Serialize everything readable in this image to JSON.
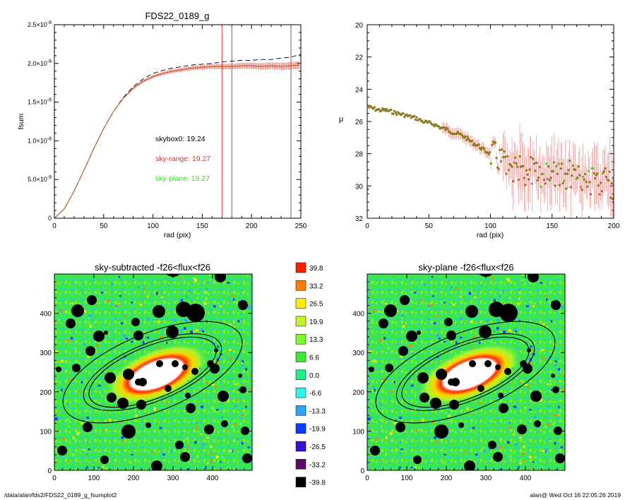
{
  "chart_data": [
    {
      "type": "line",
      "title": "FDS22_0189_g",
      "xlabel": "rad (pix)",
      "ylabel": "fsum",
      "xlim": [
        0,
        250
      ],
      "ylim": [
        0,
        2.5e-08
      ],
      "xticks": [
        "0",
        "50",
        "100",
        "150",
        "200",
        "250"
      ],
      "yticks": [
        {
          "v": 0,
          "label": "0"
        },
        {
          "v": 5e-09,
          "label": "5.0×10",
          "exp": "-9"
        },
        {
          "v": 1e-08,
          "label": "1.0×10",
          "exp": "-8"
        },
        {
          "v": 1.5e-08,
          "label": "1.5×10",
          "exp": "-8"
        },
        {
          "v": 2e-08,
          "label": "2.0×10",
          "exp": "-8"
        },
        {
          "v": 2.5e-08,
          "label": "2.5×10",
          "exp": "-8"
        }
      ],
      "vlines": [
        170,
        180,
        240
      ],
      "annotations": [
        {
          "text": "skybox0: 19.24",
          "color": "#000000"
        },
        {
          "text": "sky-range: 19.27",
          "color": "#e8302a"
        },
        {
          "text": "sky-plane: 19.27",
          "color": "#33dd22"
        }
      ],
      "series": [
        {
          "style": "dashed",
          "color": "#000000",
          "x": [
            0,
            10,
            20,
            30,
            40,
            50,
            60,
            70,
            80,
            90,
            100,
            110,
            120,
            130,
            140,
            150,
            160,
            170,
            180,
            190,
            200,
            210,
            220,
            230,
            240,
            250
          ],
          "y": [
            0,
            1.2e-09,
            3.5e-09,
            6.2e-09,
            9e-09,
            1.16e-08,
            1.38e-08,
            1.56e-08,
            1.7e-08,
            1.8e-08,
            1.87e-08,
            1.91e-08,
            1.94e-08,
            1.96e-08,
            1.98e-08,
            1.99e-08,
            2e-08,
            2.02e-08,
            2.03e-08,
            2.04e-08,
            2.04e-08,
            2.05e-08,
            2.05e-08,
            2.07e-08,
            2.08e-08,
            2.12e-08
          ]
        },
        {
          "style": "errorbars",
          "color": "#e8302a",
          "x": [
            0,
            10,
            20,
            30,
            40,
            50,
            60,
            70,
            80,
            90,
            100,
            110,
            120,
            130,
            140,
            150,
            160,
            170,
            180,
            190,
            200,
            210,
            220,
            230,
            240,
            250
          ],
          "y": [
            0,
            1.2e-09,
            3.5e-09,
            6.2e-09,
            9e-09,
            1.16e-08,
            1.38e-08,
            1.55e-08,
            1.68e-08,
            1.77e-08,
            1.83e-08,
            1.87e-08,
            1.9e-08,
            1.92e-08,
            1.94e-08,
            1.95e-08,
            1.96e-08,
            1.96e-08,
            1.96e-08,
            1.97e-08,
            1.97e-08,
            1.96e-08,
            1.97e-08,
            1.96e-08,
            1.97e-08,
            1.98e-08
          ]
        }
      ]
    },
    {
      "type": "scatter",
      "title": "",
      "xlabel": "rad (pix)",
      "ylabel": "μ",
      "xlim": [
        0,
        200
      ],
      "ylim": [
        32,
        20
      ],
      "xticks": [
        "0",
        "50",
        "100",
        "150",
        "200"
      ],
      "yticks": [
        "20",
        "22",
        "24",
        "26",
        "28",
        "30",
        "32"
      ],
      "series": [
        {
          "color": "#8b7a1e",
          "x": [
            1,
            5,
            10,
            15,
            20,
            25,
            30,
            35,
            40,
            45,
            50,
            55,
            60,
            65,
            70,
            75,
            80,
            85,
            90,
            95,
            100,
            105,
            110,
            115,
            120,
            125,
            130,
            135,
            140,
            145,
            150,
            155,
            160,
            165,
            170,
            175,
            180,
            185,
            190,
            195,
            200
          ],
          "y": [
            25.1,
            25.2,
            25.3,
            25.3,
            25.4,
            25.5,
            25.6,
            25.7,
            25.8,
            26.0,
            26.1,
            26.2,
            26.4,
            26.5,
            26.7,
            26.8,
            27.0,
            27.3,
            27.5,
            27.8,
            28.0,
            28.2,
            28.6,
            28.8,
            29.0,
            28.8,
            29.2,
            28.9,
            29.4,
            29.1,
            29.3,
            29.0,
            29.5,
            29.2,
            29.6,
            29.3,
            29.8,
            29.5,
            30.0,
            29.7,
            30.2
          ]
        }
      ]
    },
    {
      "type": "heatmap",
      "title": "sky-subtracted -f26<flux<f26",
      "xlim": [
        0,
        500
      ],
      "ylim": [
        0,
        500
      ],
      "xticks": [
        "0",
        "100",
        "200",
        "300",
        "400"
      ],
      "yticks": [
        "0",
        "100",
        "200",
        "300",
        "400"
      ]
    },
    {
      "type": "heatmap",
      "title": "sky-plane -f26<flux<f26",
      "xlim": [
        0,
        500
      ],
      "ylim": [
        0,
        500
      ],
      "xticks": [
        "0",
        "100",
        "200",
        "300",
        "400"
      ],
      "yticks": [
        "0",
        "100",
        "200",
        "300",
        "400"
      ]
    }
  ],
  "colorbar": {
    "labels": [
      "39.8",
      "33.2",
      "26.5",
      "19.9",
      "13.3",
      "6.6",
      "0.0",
      "-6.6",
      "-13.3",
      "-19.9",
      "-26.5",
      "-33.2",
      "-39.8"
    ],
    "colors": [
      "#ff1a00",
      "#ff7d00",
      "#ffee00",
      "#bff52a",
      "#7dfa2a",
      "#33ee33",
      "#22ee88",
      "#2af5e8",
      "#2aa5ff",
      "#0a3cff",
      "#3a10d6",
      "#5a0a6a",
      "#000000"
    ]
  },
  "footer": {
    "path": "/data/alan/fds2/FDS22_0189_g_fsumplot2",
    "stamp": "alan@  Wed Oct 16 22:05:26 2019"
  }
}
